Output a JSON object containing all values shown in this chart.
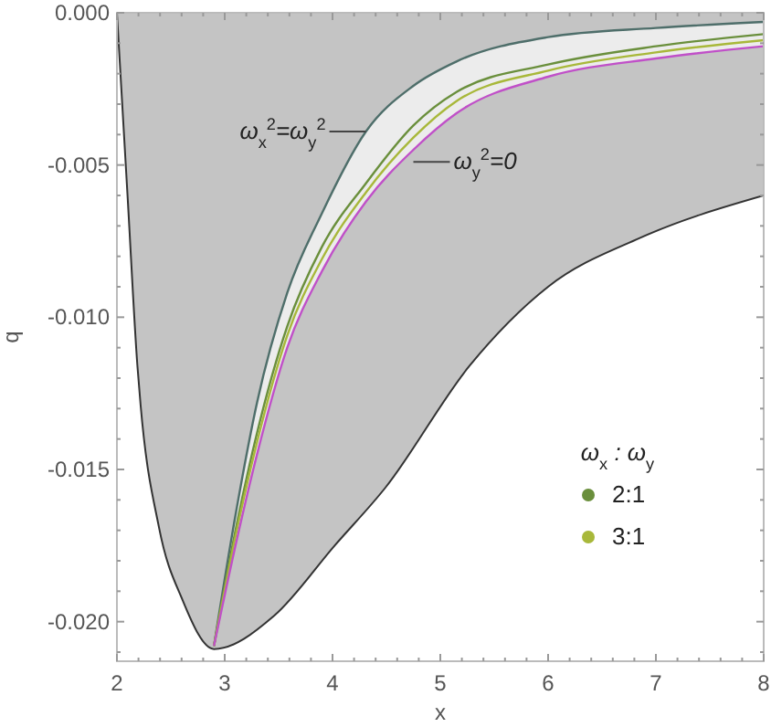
{
  "chart_data": {
    "type": "line",
    "xlabel": "x",
    "ylabel": "q",
    "legend_title": "ω$_{x}$ : ω$_{y}$",
    "legend": "bottom right",
    "marker": "none",
    "line_style": "solid",
    "grid": false,
    "xlim": [
      2,
      8
    ],
    "ylim": [
      -0.0213,
      0
    ],
    "xticks": [
      2,
      {
        "value": 2.2,
        "label": null
      },
      {
        "value": 2.4,
        "label": null
      },
      {
        "value": 2.6,
        "label": null
      },
      {
        "value": 2.8,
        "label": null
      },
      3,
      {
        "value": 3.2,
        "label": null
      },
      {
        "value": 3.4,
        "label": null
      },
      {
        "value": 3.6,
        "label": null
      },
      {
        "value": 3.8,
        "label": null
      },
      4,
      {
        "value": 4.2,
        "label": null
      },
      {
        "value": 4.4,
        "label": null
      },
      {
        "value": 4.6,
        "label": null
      },
      {
        "value": 4.8,
        "label": null
      },
      5,
      {
        "value": 5.2,
        "label": null
      },
      {
        "value": 5.4,
        "label": null
      },
      {
        "value": 5.6,
        "label": null
      },
      {
        "value": 5.8,
        "label": null
      },
      6,
      {
        "value": 6.2,
        "label": null
      },
      {
        "value": 6.4,
        "label": null
      },
      {
        "value": 6.6,
        "label": null
      },
      {
        "value": 6.8,
        "label": null
      },
      7,
      {
        "value": 7.2,
        "label": null
      },
      {
        "value": 7.4,
        "label": null
      },
      {
        "value": 7.6,
        "label": null
      },
      {
        "value": 7.8,
        "label": null
      },
      8
    ],
    "yticks": [
      {
        "value": -0.021,
        "label": null
      },
      {
        "value": -0.02,
        "label": "-0.020"
      },
      {
        "value": -0.019,
        "label": null
      },
      {
        "value": -0.018,
        "label": null
      },
      {
        "value": -0.017,
        "label": null
      },
      {
        "value": -0.016,
        "label": null
      },
      {
        "value": -0.015,
        "label": "-0.015"
      },
      {
        "value": -0.014,
        "label": null
      },
      {
        "value": -0.013,
        "label": null
      },
      {
        "value": -0.012,
        "label": null
      },
      {
        "value": -0.011,
        "label": null
      },
      {
        "value": -0.01,
        "label": "-0.010"
      },
      {
        "value": -0.009,
        "label": null
      },
      {
        "value": -0.008,
        "label": null
      },
      {
        "value": -0.007,
        "label": null
      },
      {
        "value": -0.006,
        "label": null
      },
      {
        "value": -0.005,
        "label": "-0.005"
      },
      {
        "value": -0.004,
        "label": null
      },
      {
        "value": -0.003,
        "label": null
      },
      {
        "value": -0.002,
        "label": null
      },
      {
        "value": -0.001,
        "label": null
      },
      {
        "value": 0,
        "label": "0.000"
      }
    ],
    "series": [
      {
        "type": "area",
        "color": "#c4c4c4",
        "x": [
          2,
          2.1,
          2.19,
          2.22,
          2.39,
          2.61,
          2.9,
          3.46,
          4.02,
          4.49,
          5.27,
          6,
          6.85,
          8
        ],
        "values": [
          0,
          -0.0061,
          -0.0116,
          -0.0129,
          -0.0169,
          -0.0193,
          -0.0209,
          -0.0198,
          -0.0175,
          -0.0156,
          -0.0116,
          -0.009,
          -0.0074,
          -0.006
        ]
      },
      {
        "color": "#4e6e6a",
        "x": [
          2.9,
          3.1,
          3.3,
          3.58,
          3.9,
          4.31,
          4.75,
          5.15,
          6,
          7,
          8
        ],
        "values": [
          -0.0208,
          -0.0165,
          -0.0128,
          -0.0092,
          -0.0066,
          -0.0039,
          -0.0024,
          -0.0016,
          -0.0008,
          -0.0005,
          -0.0003
        ],
        "lower": [
          -0.0208,
          -0.0175,
          -0.0145,
          -0.011,
          -0.0085,
          -0.0062,
          -0.0045,
          -0.0033,
          -0.0021,
          -0.0015,
          -0.0011
        ],
        "upper": [
          -0.0208,
          -0.0165,
          -0.0128,
          -0.0092,
          -0.0066,
          -0.0039,
          -0.0024,
          -0.0016,
          -0.0008,
          -0.0005,
          -0.0003
        ]
      },
      {
        "type": "line",
        "name": "2:1",
        "color": "#6a8f3c",
        "x": [
          2.9,
          3.1,
          3.3,
          3.58,
          3.9,
          4.31,
          4.75,
          5.15,
          6,
          7,
          8
        ],
        "values": [
          -0.0208,
          -0.017,
          -0.0138,
          -0.0103,
          -0.0077,
          -0.0056,
          -0.0037,
          -0.0026,
          -0.0017,
          -0.0011,
          -0.0007
        ]
      },
      {
        "type": "line",
        "name": "3:1",
        "color": "#a8b83a",
        "x": [
          2.9,
          3.1,
          3.3,
          3.58,
          3.9,
          4.31,
          4.75,
          5.15,
          6,
          7,
          8
        ],
        "values": [
          -0.0208,
          -0.0172,
          -0.0141,
          -0.0106,
          -0.0081,
          -0.0059,
          -0.0041,
          -0.0029,
          -0.0019,
          -0.0013,
          -0.0009
        ]
      },
      {
        "type": "line",
        "color": "#c050c8",
        "x": [
          2.9,
          3.1,
          3.3,
          3.58,
          3.9,
          4.31,
          4.75,
          5.15,
          6,
          7,
          8
        ],
        "values": [
          -0.0208,
          -0.0175,
          -0.0145,
          -0.011,
          -0.0085,
          -0.0062,
          -0.0045,
          -0.0033,
          -0.0021,
          -0.0015,
          -0.0011
        ]
      }
    ],
    "annotations": [
      {
        "text": "ω$_{x}$$^{2}$=ω$_{y}$$^{2}$",
        "x": 4.31,
        "y": -0.0039
      },
      {
        "text": "ω$_{y}$$^{2}$=0",
        "x": 4.75,
        "y": -0.0049
      }
    ]
  }
}
